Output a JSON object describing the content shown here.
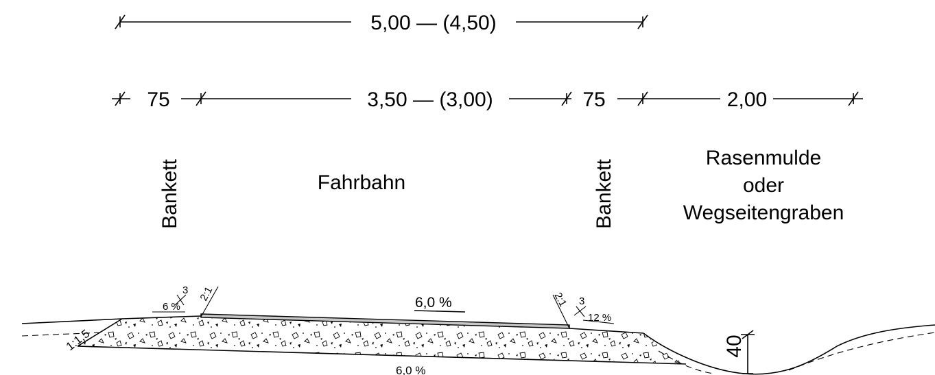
{
  "dimensions": {
    "total_width": "5,00 — (4,50)",
    "bankett_left": "75",
    "fahrbahn": "3,50 — (3,00)",
    "bankett_right": "75",
    "mulde": "2,00"
  },
  "labels": {
    "bankett_left": "Bankett",
    "fahrbahn": "Fahrbahn",
    "bankett_right": "Bankett",
    "mulde_line1": "Rasenmulde",
    "mulde_line2": "oder",
    "mulde_line3": "Wegseitengraben"
  },
  "section": {
    "shoulder_slope_left": "6 %",
    "layer_left": "3",
    "ratio_left": "2:1",
    "road_slope": "6,0 %",
    "ratio_right": "2:1",
    "layer_right": "3",
    "shoulder_slope_right": "12 %",
    "embankment_ratio": "1:1,5",
    "base_slope": "6,0 %",
    "ditch_depth": "40"
  }
}
